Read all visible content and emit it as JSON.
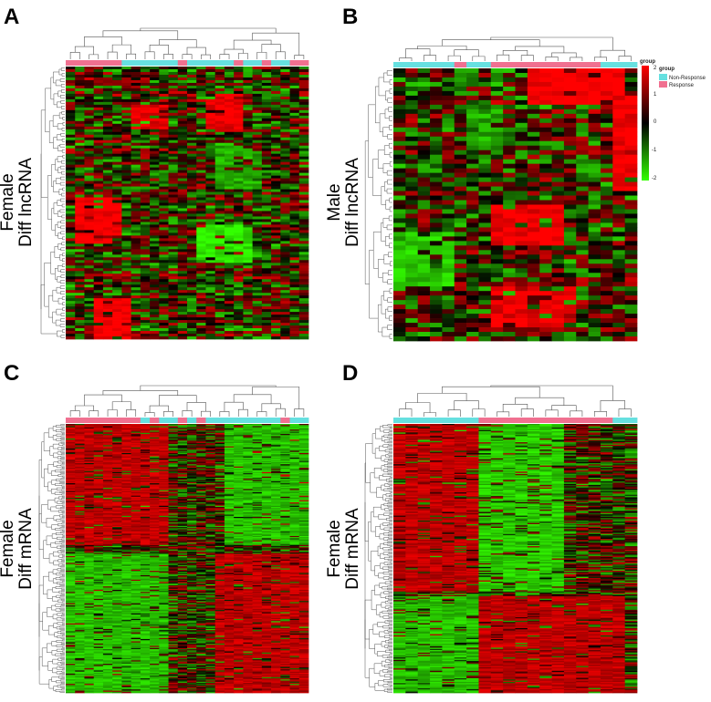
{
  "colors": {
    "low": "#33ff00",
    "mid": "#000000",
    "high": "#ff0000",
    "non_response": "#66e0e0",
    "response": "#f07090",
    "dendro": "#555555"
  },
  "legend": {
    "scale_ticks": [
      "2",
      "1",
      "0",
      "-1",
      "-2"
    ],
    "group_title": "group",
    "group_title2": "group",
    "non_response_label": "Non-Response",
    "response_label": "Response"
  },
  "chart_data": [
    {
      "type": "heatmap",
      "panel": "A",
      "ylabel_line1": "Female",
      "ylabel_line2": "Diff lncRNA",
      "n_cols": 26,
      "n_rows": 100,
      "groups": [
        "R",
        "R",
        "R",
        "R",
        "R",
        "R",
        "N",
        "N",
        "N",
        "N",
        "N",
        "N",
        "R",
        "N",
        "N",
        "N",
        "N",
        "N",
        "R",
        "N",
        "N",
        "R",
        "N",
        "N",
        "R",
        "R"
      ],
      "scale_range": [
        -2,
        2
      ]
    },
    {
      "type": "heatmap",
      "panel": "B",
      "ylabel_line1": "Male",
      "ylabel_line2": "Diff lncRNA",
      "n_cols": 20,
      "n_rows": 60,
      "groups": [
        "N",
        "N",
        "N",
        "N",
        "N",
        "R",
        "N",
        "N",
        "R",
        "R",
        "R",
        "R",
        "R",
        "R",
        "R",
        "R",
        "R",
        "N",
        "N",
        "N"
      ],
      "scale_range": [
        -2,
        2
      ]
    },
    {
      "type": "heatmap",
      "panel": "C",
      "ylabel_line1": "Female",
      "ylabel_line2": "Diff mRNA",
      "n_cols": 26,
      "n_rows": 240,
      "groups": [
        "R",
        "R",
        "R",
        "R",
        "R",
        "R",
        "R",
        "R",
        "N",
        "R",
        "N",
        "N",
        "R",
        "N",
        "R",
        "N",
        "N",
        "N",
        "N",
        "N",
        "N",
        "N",
        "N",
        "R",
        "N",
        "N"
      ],
      "scale_range": [
        -2,
        2
      ]
    },
    {
      "type": "heatmap",
      "panel": "D",
      "ylabel_line1": "Female",
      "ylabel_line2": "Diff mRNA",
      "n_cols": 20,
      "n_rows": 220,
      "groups": [
        "N",
        "N",
        "N",
        "N",
        "N",
        "N",
        "N",
        "R",
        "R",
        "R",
        "R",
        "R",
        "R",
        "R",
        "R",
        "R",
        "R",
        "R",
        "N",
        "N"
      ],
      "scale_range": [
        -2,
        2
      ]
    }
  ]
}
